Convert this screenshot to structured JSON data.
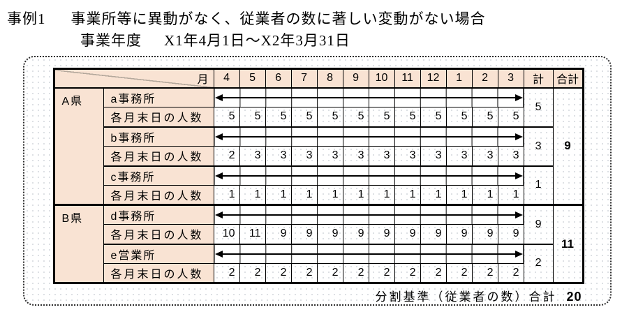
{
  "title": {
    "case_label": "事例1",
    "case_text": "事業所等に異動がなく、従業者の数に著しい変動がない場合",
    "period_label": "事業年度",
    "period_text": "X1年4月1日～X2年3月31日"
  },
  "table": {
    "corner_label": "月",
    "month_headers": [
      "4",
      "5",
      "6",
      "7",
      "8",
      "9",
      "10",
      "11",
      "12",
      "1",
      "2",
      "3"
    ],
    "total_header": "計",
    "grand_total_header": "合計",
    "count_row_label": "各月末日の人数",
    "groups": [
      {
        "prefecture": "A県",
        "grand_total": "9",
        "offices": [
          {
            "name": "a事務所",
            "monthly": [
              "5",
              "5",
              "5",
              "5",
              "5",
              "5",
              "5",
              "5",
              "5",
              "5",
              "5",
              "5"
            ],
            "total": "5"
          },
          {
            "name": "b事務所",
            "monthly": [
              "2",
              "3",
              "3",
              "3",
              "3",
              "3",
              "3",
              "3",
              "3",
              "3",
              "3",
              "3"
            ],
            "total": "3"
          },
          {
            "name": "c事務所",
            "monthly": [
              "1",
              "1",
              "1",
              "1",
              "1",
              "1",
              "1",
              "1",
              "1",
              "1",
              "1",
              "1"
            ],
            "total": "1"
          }
        ]
      },
      {
        "prefecture": "B県",
        "grand_total": "11",
        "offices": [
          {
            "name": "d事務所",
            "monthly": [
              "10",
              "11",
              "9",
              "9",
              "9",
              "9",
              "9",
              "9",
              "9",
              "9",
              "9",
              "9"
            ],
            "total": "9"
          },
          {
            "name": "e営業所",
            "monthly": [
              "2",
              "2",
              "2",
              "2",
              "2",
              "2",
              "2",
              "2",
              "2",
              "2",
              "2",
              "2"
            ],
            "total": "2"
          }
        ]
      }
    ]
  },
  "footer": {
    "label": "分割基準（従業者の数）合計",
    "value": "20"
  },
  "colors": {
    "header_bg": "#f9e3d3",
    "border": "#000000",
    "diagonal_line": "#b4a89c"
  }
}
